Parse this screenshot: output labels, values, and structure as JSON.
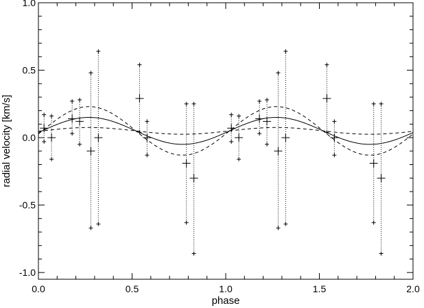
{
  "chart_data": {
    "type": "scatter",
    "title": "",
    "xlabel": "phase",
    "ylabel": "radial velocity [km/s]",
    "xlim": [
      0.0,
      2.0
    ],
    "ylim": [
      -1.05,
      1.0
    ],
    "x_ticks": [
      "0.0",
      "0.5",
      "1.0",
      "1.5",
      "2.0"
    ],
    "y_ticks": [
      "-1.0",
      "-0.5",
      "0.0",
      "0.5",
      "1.0"
    ],
    "grid": false,
    "legend": "none",
    "series": [
      {
        "kind": "points_with_errorbars",
        "points": [
          {
            "x": 0.03,
            "y": 0.07,
            "lo": -0.03,
            "hi": 0.17
          },
          {
            "x": 0.07,
            "y": 0.0,
            "lo": -0.16,
            "hi": 0.16
          },
          {
            "x": 0.18,
            "y": 0.14,
            "lo": 0.03,
            "hi": 0.27
          },
          {
            "x": 0.22,
            "y": 0.12,
            "lo": -0.05,
            "hi": 0.28
          },
          {
            "x": 0.28,
            "y": -0.1,
            "lo": -0.67,
            "hi": 0.48
          },
          {
            "x": 0.32,
            "y": 0.0,
            "lo": -0.64,
            "hi": 0.64
          },
          {
            "x": 0.54,
            "y": 0.29,
            "lo": 0.04,
            "hi": 0.54
          },
          {
            "x": 0.58,
            "y": 0.0,
            "lo": -0.13,
            "hi": 0.12
          },
          {
            "x": 0.79,
            "y": -0.19,
            "lo": -0.63,
            "hi": 0.25
          },
          {
            "x": 0.83,
            "y": -0.3,
            "lo": -0.86,
            "hi": 0.25
          },
          {
            "x": 1.03,
            "y": 0.07,
            "lo": -0.03,
            "hi": 0.17
          },
          {
            "x": 1.07,
            "y": 0.0,
            "lo": -0.16,
            "hi": 0.16
          },
          {
            "x": 1.18,
            "y": 0.14,
            "lo": 0.03,
            "hi": 0.27
          },
          {
            "x": 1.22,
            "y": 0.12,
            "lo": -0.05,
            "hi": 0.28
          },
          {
            "x": 1.28,
            "y": -0.1,
            "lo": -0.67,
            "hi": 0.48
          },
          {
            "x": 1.32,
            "y": 0.0,
            "lo": -0.64,
            "hi": 0.64
          },
          {
            "x": 1.54,
            "y": 0.29,
            "lo": 0.04,
            "hi": 0.54
          },
          {
            "x": 1.58,
            "y": 0.0,
            "lo": -0.13,
            "hi": 0.12
          },
          {
            "x": 1.79,
            "y": -0.19,
            "lo": -0.63,
            "hi": 0.25
          },
          {
            "x": 1.83,
            "y": -0.3,
            "lo": -0.86,
            "hi": 0.25
          }
        ]
      },
      {
        "kind": "sine_fit",
        "style": "solid",
        "offset": 0.05,
        "amplitude": 0.1,
        "peak_phase": 0.27,
        "period": 1.0
      },
      {
        "kind": "sine_fit",
        "style": "dashed",
        "offset": 0.05,
        "amplitude": 0.18,
        "peak_phase": 0.27,
        "period": 1.0
      },
      {
        "kind": "sine_fit",
        "style": "dashed",
        "offset": 0.05,
        "amplitude": 0.025,
        "peak_phase": 0.27,
        "period": 1.0
      }
    ]
  }
}
